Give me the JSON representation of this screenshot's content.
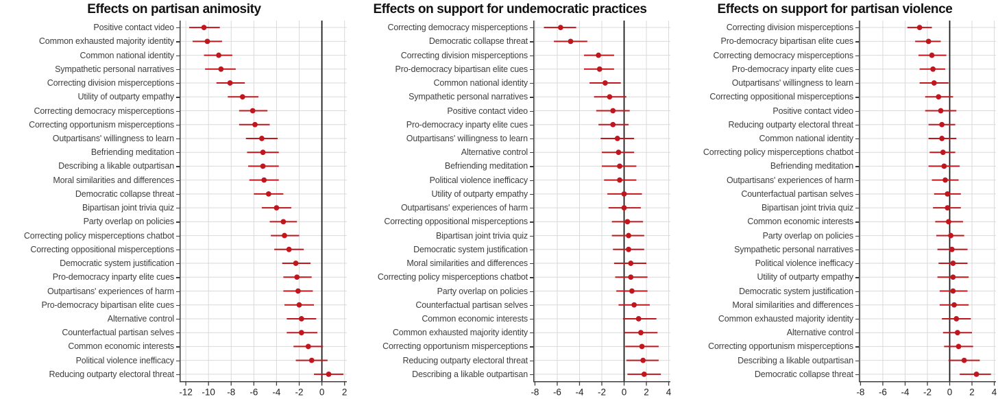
{
  "figure": {
    "colors": {
      "point": "#c0161d",
      "ci": "#c0161d",
      "grid": "#d9d9d9",
      "axis": "#3c3c3c",
      "zero_line": "#1a1a1a",
      "label_text": "#3d3d3d",
      "tick_text": "#222222",
      "title_text": "#111111",
      "background": "#ffffff"
    }
  },
  "chart_data": [
    {
      "type": "scatter",
      "subtype": "forest-dot-whisker",
      "title": "Effects on partisan animosity",
      "xlabel": "",
      "ylabel": "",
      "xlim": [
        -12.55,
        2.2
      ],
      "xticks": [
        -12,
        -10,
        -8,
        -6,
        -4,
        -2,
        0,
        2
      ],
      "grid": true,
      "zero_reference_line": 0,
      "categories": [
        "Positive contact video",
        "Common exhausted majority identity",
        "Common national identity",
        "Sympathetic personal narratives",
        "Correcting division misperceptions",
        "Utility of outparty empathy",
        "Correcting democracy misperceptions",
        "Correcting opportunism misperceptions",
        "Outpartisans' willingness to learn",
        "Befriending meditation",
        "Describing a likable outpartisan",
        "Moral similarities and differences",
        "Democratic collapse threat",
        "Bipartisan joint trivia quiz",
        "Party overlap on policies",
        "Correcting policy misperceptions chatbot",
        "Correcting oppositional misperceptions",
        "Democratic system justification",
        "Pro-democracy inparty elite cues",
        "Outpartisans' experiences of harm",
        "Pro-democracy bipartisan elite cues",
        "Alternative control",
        "Counterfactual partisan selves",
        "Common economic interests",
        "Political violence inefficacy",
        "Reducing outparty electoral threat"
      ],
      "series": [
        {
          "name": "effect",
          "values": [
            -10.4,
            -10.1,
            -9.1,
            -8.9,
            -8.1,
            -7.0,
            -6.1,
            -5.9,
            -5.3,
            -5.2,
            -5.2,
            -5.1,
            -4.7,
            -4.0,
            -3.4,
            -3.3,
            -2.9,
            -2.3,
            -2.2,
            -2.1,
            -2.0,
            -1.8,
            -1.8,
            -1.2,
            -0.9,
            0.6
          ],
          "ci_low": [
            -11.7,
            -11.4,
            -10.4,
            -10.3,
            -9.3,
            -8.3,
            -7.3,
            -7.3,
            -6.7,
            -6.6,
            -6.5,
            -6.4,
            -6.0,
            -5.3,
            -4.6,
            -4.5,
            -4.2,
            -3.5,
            -3.4,
            -3.4,
            -3.3,
            -3.1,
            -3.1,
            -2.5,
            -2.3,
            -0.7
          ],
          "ci_high": [
            -9.0,
            -8.8,
            -7.9,
            -7.6,
            -6.8,
            -5.6,
            -4.8,
            -4.6,
            -3.9,
            -3.8,
            -3.8,
            -3.8,
            -3.4,
            -2.7,
            -2.2,
            -2.0,
            -1.6,
            -1.0,
            -0.9,
            -0.8,
            -0.7,
            -0.5,
            -0.4,
            0.1,
            0.5,
            1.9
          ]
        }
      ]
    },
    {
      "type": "scatter",
      "subtype": "forest-dot-whisker",
      "title": "Effects on support for undemocratic practices",
      "xlabel": "",
      "ylabel": "",
      "xlim": [
        -8.15,
        4.15
      ],
      "xticks": [
        -8,
        -6,
        -4,
        -2,
        0,
        2,
        4
      ],
      "grid": true,
      "zero_reference_line": 0,
      "categories": [
        "Correcting democracy misperceptions",
        "Democratic collapse threat",
        "Correcting division misperceptions",
        "Pro-democracy bipartisan elite cues",
        "Common national identity",
        "Sympathetic personal narratives",
        "Positive contact video",
        "Pro-democracy inparty elite cues",
        "Outpartisans' willingness to learn",
        "Alternative control",
        "Befriending meditation",
        "Political violence inefficacy",
        "Utility of outparty empathy",
        "Outpartisans' experiences of harm",
        "Correcting oppositional misperceptions",
        "Bipartisan joint trivia quiz",
        "Democratic system justification",
        "Moral similarities and differences",
        "Correcting policy misperceptions chatbot",
        "Party overlap on policies",
        "Counterfactual partisan selves",
        "Common economic interests",
        "Common exhausted majority identity",
        "Correcting opportunism misperceptions",
        "Reducing outparty electoral threat",
        "Describing a likable outpartisan"
      ],
      "series": [
        {
          "name": "effect",
          "values": [
            -5.7,
            -4.8,
            -2.3,
            -2.2,
            -1.7,
            -1.3,
            -1.0,
            -1.0,
            -0.6,
            -0.5,
            -0.4,
            -0.4,
            0.0,
            0.0,
            0.3,
            0.4,
            0.4,
            0.6,
            0.6,
            0.7,
            0.9,
            1.3,
            1.5,
            1.6,
            1.7,
            1.8
          ],
          "ci_low": [
            -7.2,
            -6.3,
            -3.6,
            -3.6,
            -3.1,
            -2.7,
            -2.5,
            -2.3,
            -2.1,
            -2.0,
            -2.0,
            -1.8,
            -1.5,
            -1.4,
            -1.1,
            -1.1,
            -1.0,
            -0.9,
            -0.8,
            -0.7,
            -0.5,
            -0.1,
            0.0,
            0.1,
            0.2,
            0.3
          ],
          "ci_high": [
            -4.3,
            -3.3,
            -0.9,
            -0.9,
            -0.3,
            0.2,
            0.5,
            0.4,
            0.9,
            0.9,
            1.1,
            1.1,
            1.6,
            1.5,
            1.7,
            1.8,
            1.8,
            2.0,
            2.1,
            2.1,
            2.3,
            2.9,
            3.0,
            3.1,
            3.1,
            3.3
          ]
        }
      ]
    },
    {
      "type": "scatter",
      "subtype": "forest-dot-whisker",
      "title": "Effects on support for partisan violence",
      "xlabel": "",
      "ylabel": "",
      "xlim": [
        -8.15,
        4.15
      ],
      "xticks": [
        -8,
        -6,
        -4,
        -2,
        0,
        2,
        4
      ],
      "grid": true,
      "zero_reference_line": 0,
      "categories": [
        "Correcting division misperceptions",
        "Pro-democracy bipartisan elite cues",
        "Correcting democracy misperceptions",
        "Pro-democracy inparty elite cues",
        "Outpartisans' willingness to learn",
        "Correcting oppositional misperceptions",
        "Positive contact video",
        "Reducing outparty electoral threat",
        "Common national identity",
        "Correcting policy misperceptions chatbot",
        "Befriending meditation",
        "Outpartisans' experiences of harm",
        "Counterfactual partisan selves",
        "Bipartisan joint trivia quiz",
        "Common economic interests",
        "Party overlap on policies",
        "Sympathetic personal narratives",
        "Political violence inefficacy",
        "Utility of outparty empathy",
        "Democratic system justification",
        "Moral similarities and differences",
        "Common exhausted majority identity",
        "Alternative control",
        "Correcting opportunism misperceptions",
        "Describing a likable outpartisan",
        "Democratic collapse threat"
      ],
      "series": [
        {
          "name": "effect",
          "values": [
            -2.7,
            -1.9,
            -1.6,
            -1.5,
            -1.4,
            -1.0,
            -0.8,
            -0.7,
            -0.7,
            -0.6,
            -0.5,
            -0.4,
            -0.2,
            -0.2,
            -0.1,
            0.1,
            0.2,
            0.3,
            0.3,
            0.3,
            0.4,
            0.6,
            0.7,
            0.8,
            1.3,
            2.4
          ],
          "ci_low": [
            -3.8,
            -3.1,
            -2.8,
            -2.7,
            -2.7,
            -2.2,
            -2.2,
            -1.9,
            -1.9,
            -1.8,
            -1.9,
            -1.6,
            -1.4,
            -1.5,
            -1.3,
            -1.2,
            -1.1,
            -1.0,
            -1.1,
            -0.9,
            -0.9,
            -0.7,
            -0.6,
            -0.5,
            -0.1,
            0.9
          ],
          "ci_high": [
            -1.6,
            -0.8,
            -0.3,
            -0.4,
            -0.1,
            0.3,
            0.6,
            0.5,
            0.6,
            0.5,
            0.9,
            0.8,
            1.0,
            1.0,
            1.2,
            1.3,
            1.6,
            1.6,
            1.7,
            1.6,
            1.7,
            1.9,
            2.0,
            2.1,
            2.7,
            3.7
          ]
        }
      ]
    }
  ]
}
